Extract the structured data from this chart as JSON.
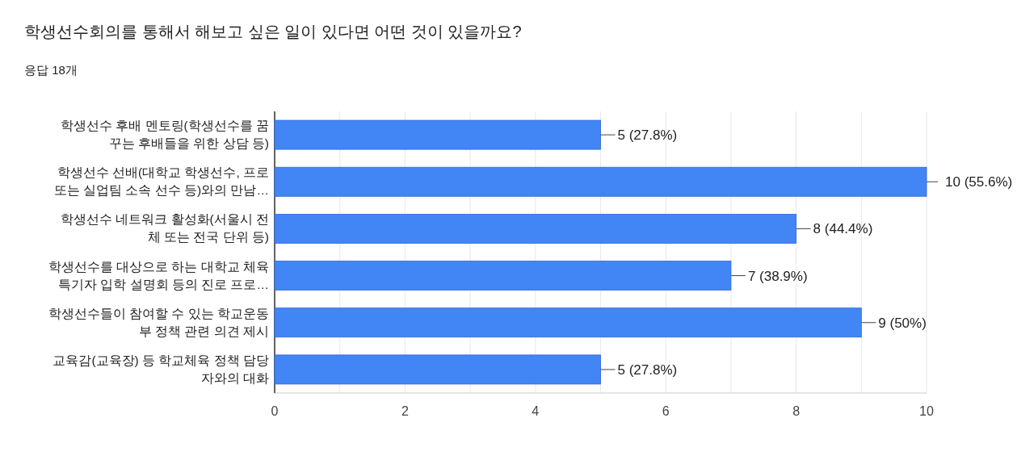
{
  "chart_data": {
    "type": "bar",
    "orientation": "horizontal",
    "title": "학생선수회의를 통해서 해보고 싶은 일이 있다면 어떤 것이 있을까요?",
    "subtitle": "응답 18개",
    "categories": [
      "학생선수 후배 멘토링(학생선수를 꿈\n꾸는 후배들을 위한 상담 등)",
      "학생선수 선배(대학교 학생선수, 프로\n또는 실업팀 소속 선수 등)와의 만남…",
      "학생선수 네트워크 활성화(서울시 전\n체 또는 전국 단위 등)",
      "학생선수를 대상으로 하는 대학교 체육\n특기자 입학 설명회 등의 진로 프로…",
      "학생선수들이 참여할 수 있는 학교운동\n부 정책 관련 의견 제시",
      "교육감(교육장) 등 학교체육 정책 담당\n자와의 대화"
    ],
    "values": [
      5,
      10,
      8,
      7,
      9,
      5
    ],
    "value_labels": [
      "5 (27.8%)",
      "10 (55.6%)",
      "8 (44.4%)",
      "7 (38.9%)",
      "9 (50%)",
      "5 (27.8%)"
    ],
    "color": "#4285f4",
    "xlim": [
      0,
      10
    ],
    "xticks": [
      0,
      {
        "value": 1,
        "label": null
      },
      2,
      {
        "value": 3,
        "label": null
      },
      4,
      {
        "value": 5,
        "label": null
      },
      6,
      {
        "value": 7,
        "label": null
      },
      8,
      {
        "value": 9,
        "label": null
      },
      10
    ],
    "grid": "x"
  }
}
